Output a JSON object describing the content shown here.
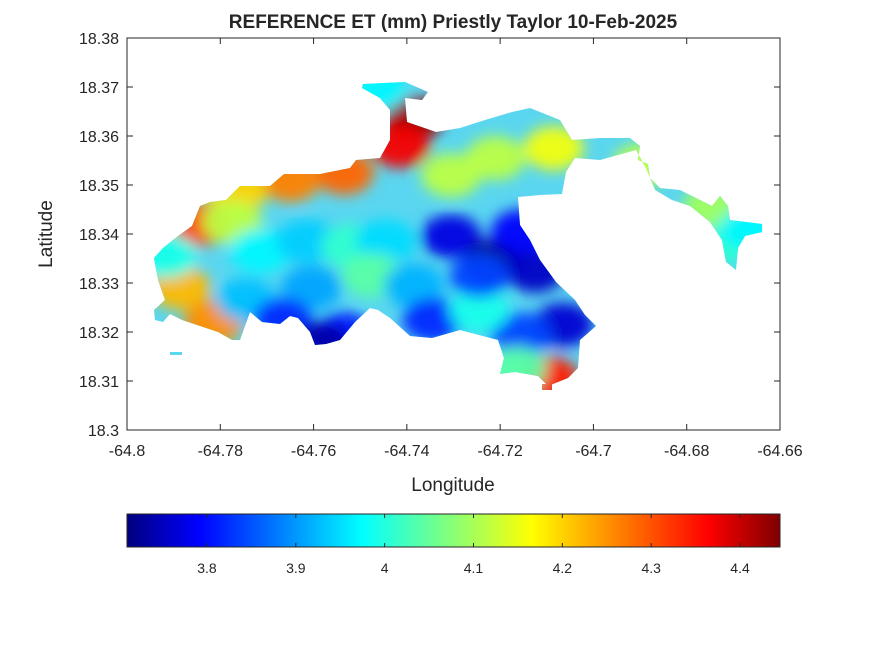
{
  "chart_data": {
    "type": "heatmap",
    "title": "REFERENCE ET (mm) Priestly Taylor 10-Feb-2025",
    "xlabel": "Longitude",
    "ylabel": "Latitude",
    "xlim": [
      -64.8,
      -64.66
    ],
    "ylim": [
      18.3,
      18.38
    ],
    "xticks": [
      -64.8,
      -64.78,
      -64.76,
      -64.74,
      -64.72,
      -64.7,
      -64.68,
      -64.66
    ],
    "xtick_labels": [
      "-64.8",
      "-64.78",
      "-64.76",
      "-64.74",
      "-64.72",
      "-64.7",
      "-64.68",
      "-64.66"
    ],
    "yticks": [
      18.3,
      18.31,
      18.32,
      18.33,
      18.34,
      18.35,
      18.36,
      18.37,
      18.38
    ],
    "ytick_labels": [
      "18.3",
      "18.31",
      "18.32",
      "18.33",
      "18.34",
      "18.35",
      "18.36",
      "18.37",
      "18.38"
    ],
    "grid": false,
    "colormap": "jet",
    "colorbar": {
      "location": "southoutside",
      "clim": [
        3.71,
        4.445
      ],
      "ticks": [
        3.8,
        3.9,
        4.0,
        4.1,
        4.2,
        4.3,
        4.4
      ],
      "tick_labels": [
        "3.8",
        "3.9",
        "4",
        "4.1",
        "4.2",
        "4.3",
        "4.4"
      ]
    },
    "hotspots": [
      {
        "lon": -64.7385,
        "lat": 18.3635,
        "value": 4.43
      },
      {
        "lon": -64.7415,
        "lat": 18.358,
        "value": 4.36
      },
      {
        "lon": -64.7535,
        "lat": 18.3525,
        "value": 4.28
      },
      {
        "lon": -64.765,
        "lat": 18.351,
        "value": 4.26
      },
      {
        "lon": -64.7765,
        "lat": 18.3485,
        "value": 4.2
      },
      {
        "lon": -64.7845,
        "lat": 18.342,
        "value": 4.3
      },
      {
        "lon": -64.7885,
        "lat": 18.329,
        "value": 4.22
      },
      {
        "lon": -64.7815,
        "lat": 18.322,
        "value": 4.25
      },
      {
        "lon": -64.7775,
        "lat": 18.3425,
        "value": 4.12
      },
      {
        "lon": -64.7305,
        "lat": 18.352,
        "value": 4.12
      },
      {
        "lon": -64.721,
        "lat": 18.3555,
        "value": 4.12
      },
      {
        "lon": -64.7085,
        "lat": 18.3575,
        "value": 4.16
      },
      {
        "lon": -64.7715,
        "lat": 18.3365,
        "value": 3.98
      },
      {
        "lon": -64.7615,
        "lat": 18.3385,
        "value": 3.95
      },
      {
        "lon": -64.752,
        "lat": 18.3375,
        "value": 4.02
      },
      {
        "lon": -64.7445,
        "lat": 18.3385,
        "value": 3.96
      },
      {
        "lon": -64.7605,
        "lat": 18.329,
        "value": 3.92
      },
      {
        "lon": -64.7475,
        "lat": 18.3315,
        "value": 4.05
      },
      {
        "lon": -64.7385,
        "lat": 18.3295,
        "value": 3.93
      },
      {
        "lon": -64.7745,
        "lat": 18.3265,
        "value": 3.94
      },
      {
        "lon": -64.7665,
        "lat": 18.3225,
        "value": 3.83
      },
      {
        "lon": -64.7535,
        "lat": 18.3195,
        "value": 3.82
      },
      {
        "lon": -64.7585,
        "lat": 18.3175,
        "value": 3.74
      },
      {
        "lon": -64.7345,
        "lat": 18.3225,
        "value": 3.83
      },
      {
        "lon": -64.7305,
        "lat": 18.3395,
        "value": 3.78
      },
      {
        "lon": -64.7215,
        "lat": 18.3345,
        "value": 3.72
      },
      {
        "lon": -64.7125,
        "lat": 18.3325,
        "value": 3.76
      },
      {
        "lon": -64.7155,
        "lat": 18.3405,
        "value": 3.8
      },
      {
        "lon": -64.7065,
        "lat": 18.3215,
        "value": 3.77
      },
      {
        "lon": -64.7155,
        "lat": 18.3195,
        "value": 3.85
      },
      {
        "lon": -64.7245,
        "lat": 18.3245,
        "value": 4.0
      },
      {
        "lon": -64.7245,
        "lat": 18.3315,
        "value": 3.85
      },
      {
        "lon": -64.7095,
        "lat": 18.3105,
        "value": 4.33
      },
      {
        "lon": -64.7165,
        "lat": 18.3125,
        "value": 4.05
      },
      {
        "lon": -64.6895,
        "lat": 18.354,
        "value": 4.12
      },
      {
        "lon": -64.6745,
        "lat": 18.3455,
        "value": 4.1
      },
      {
        "lon": -64.6695,
        "lat": 18.3385,
        "value": 4.02
      },
      {
        "lon": -64.6665,
        "lat": 18.341,
        "value": 3.98
      },
      {
        "lon": -64.7465,
        "lat": 18.3695,
        "value": 3.98
      },
      {
        "lon": -64.7915,
        "lat": 18.3355,
        "value": 4.0
      }
    ]
  }
}
